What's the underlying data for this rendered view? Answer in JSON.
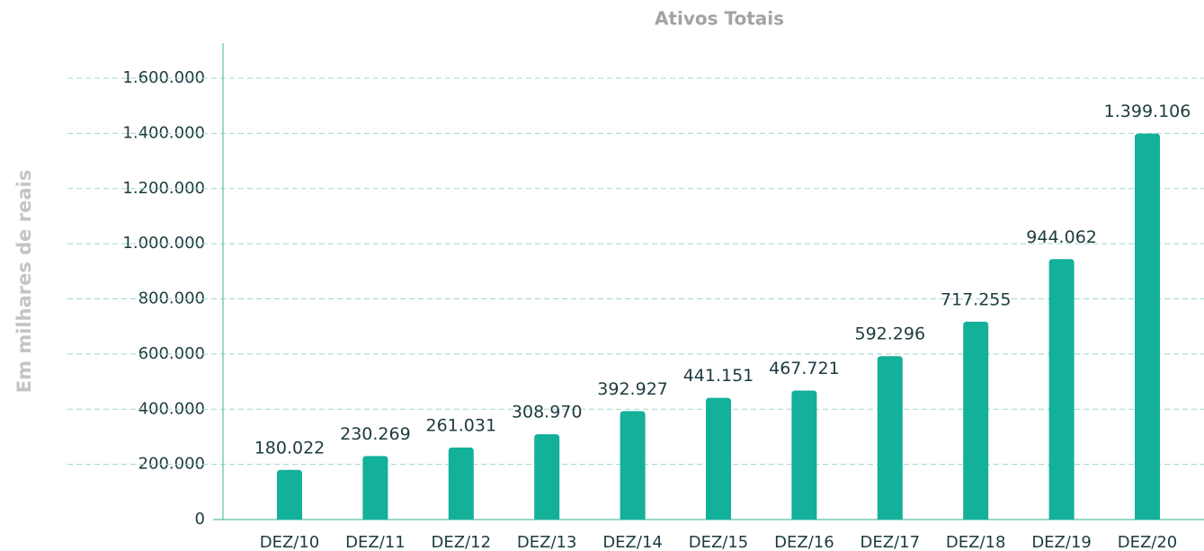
{
  "chart_data": {
    "type": "bar",
    "title": "Ativos Totais",
    "y_label": "Em milhares de reais",
    "categories": [
      "DEZ/10",
      "DEZ/11",
      "DEZ/12",
      "DEZ/13",
      "DEZ/14",
      "DEZ/15",
      "DEZ/16",
      "DEZ/17",
      "DEZ/18",
      "DEZ/19",
      "DEZ/20"
    ],
    "values": [
      180022,
      230269,
      261031,
      308970,
      392927,
      441151,
      467721,
      592296,
      717255,
      944062,
      1399106
    ],
    "value_labels": [
      "180.022",
      "230.269",
      "261.031",
      "308.970",
      "392.927",
      "441.151",
      "467.721",
      "592.296",
      "717.255",
      "944.062",
      "1.399.106"
    ],
    "color": "#13b09a",
    "ylim": [
      0,
      1600000
    ],
    "yticks": [
      0,
      {
        "value": 200000,
        "label": "200.000"
      },
      {
        "value": 400000,
        "label": "400.000"
      },
      {
        "value": 600000,
        "label": "600.000"
      },
      {
        "value": 800000,
        "label": "800.000"
      },
      {
        "value": 1000000,
        "label": "1.000.000"
      },
      {
        "value": 1200000,
        "label": "1.200.000"
      },
      {
        "value": 1400000,
        "label": "1.400.000"
      },
      {
        "value": 1600000,
        "label": "1.600.000"
      }
    ],
    "grid": true
  }
}
